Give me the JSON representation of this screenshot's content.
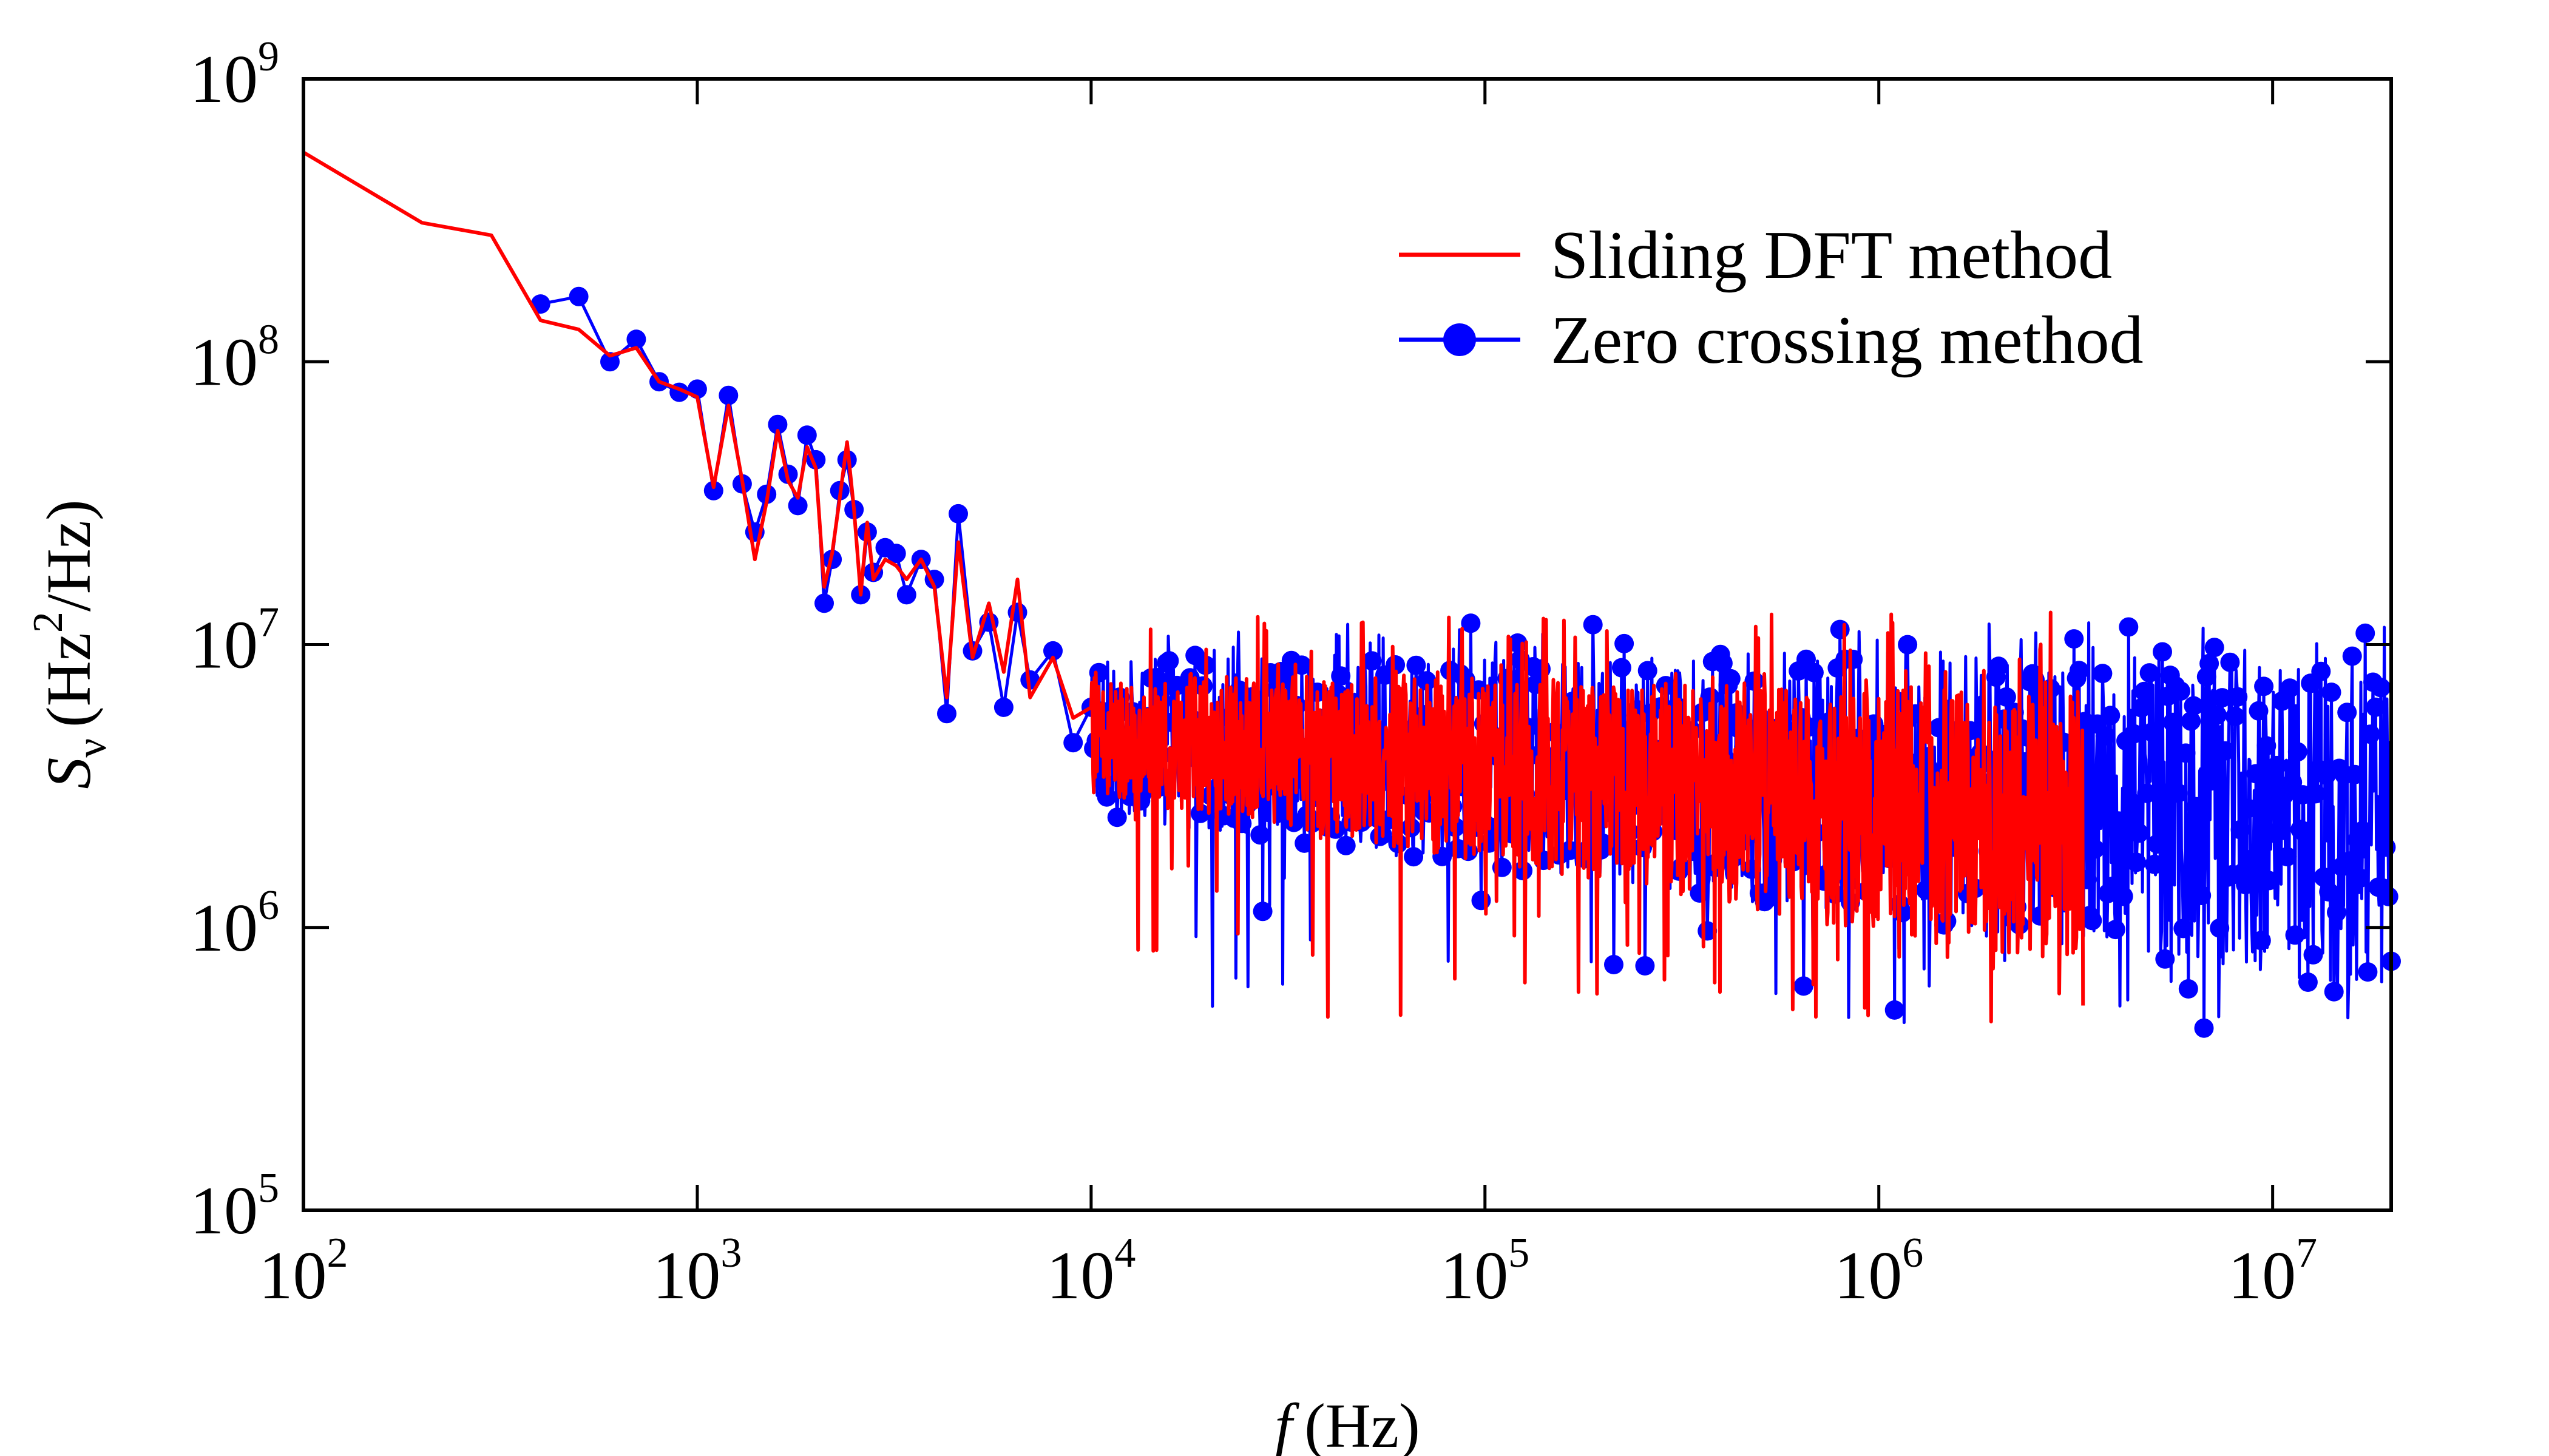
{
  "chart_data": {
    "type": "line",
    "xscale": "log",
    "yscale": "log",
    "xlim": [
      100,
      20000000
    ],
    "ylim": [
      100000,
      1000000000
    ],
    "xticks": [
      {
        "base": "10",
        "exp": "2",
        "value": 100
      },
      {
        "base": "10",
        "exp": "3",
        "value": 1000
      },
      {
        "base": "10",
        "exp": "4",
        "value": 10000
      },
      {
        "base": "10",
        "exp": "5",
        "value": 100000
      },
      {
        "base": "10",
        "exp": "6",
        "value": 1000000
      },
      {
        "base": "10",
        "exp": "7",
        "value": 10000000
      }
    ],
    "yticks": [
      {
        "base": "10",
        "exp": "5",
        "value": 100000
      },
      {
        "base": "10",
        "exp": "6",
        "value": 1000000
      },
      {
        "base": "10",
        "exp": "7",
        "value": 10000000
      },
      {
        "base": "10",
        "exp": "8",
        "value": 100000000
      },
      {
        "base": "10",
        "exp": "9",
        "value": 1000000000
      }
    ],
    "xlabel": {
      "var": "f",
      "unit": "(Hz)"
    },
    "ylabel": {
      "var": "S",
      "sub": "ν",
      "unit_open": "(Hz",
      "unit_sup": "2",
      "unit_close": "/Hz)"
    },
    "legend": {
      "position": "top-right",
      "entries": [
        {
          "label": "Sliding DFT method",
          "series": 0
        },
        {
          "label": "Zero crossing method",
          "series": 1
        }
      ]
    },
    "series": [
      {
        "name": "Sliding DFT method",
        "color": "#ff0000",
        "marker": "none",
        "points": [
          [
            100,
            550000000
          ],
          [
            200,
            310000000
          ],
          [
            300,
            280000000
          ],
          [
            400,
            140000000
          ],
          [
            500,
            130000000
          ],
          [
            600,
            105000000
          ],
          [
            700,
            112000000
          ],
          [
            800,
            85000000
          ],
          [
            900,
            80000000
          ],
          [
            1000,
            75000000
          ],
          [
            1100,
            36000000
          ],
          [
            1200,
            70000000
          ],
          [
            1300,
            38000000
          ],
          [
            1400,
            20000000
          ],
          [
            1500,
            32000000
          ],
          [
            1600,
            57000000
          ],
          [
            1700,
            38000000
          ],
          [
            1800,
            33000000
          ],
          [
            1900,
            50000000
          ],
          [
            2000,
            42000000
          ],
          [
            2100,
            16000000
          ],
          [
            2200,
            21000000
          ],
          [
            2300,
            33000000
          ],
          [
            2400,
            52000000
          ],
          [
            2500,
            30000000
          ],
          [
            2600,
            15000000
          ],
          [
            2700,
            27000000
          ],
          [
            2800,
            17000000
          ],
          [
            3000,
            20000000
          ],
          [
            3200,
            19000000
          ],
          [
            3400,
            17000000
          ],
          [
            3700,
            20000000
          ],
          [
            4000,
            16000000
          ],
          [
            4300,
            6500000
          ],
          [
            4600,
            23000000
          ],
          [
            5000,
            9000000
          ],
          [
            5500,
            14000000
          ],
          [
            6000,
            8000000
          ],
          [
            6500,
            17000000
          ],
          [
            7000,
            6500000
          ],
          [
            8000,
            9000000
          ],
          [
            9000,
            5500000
          ],
          [
            10000,
            6000000
          ]
        ],
        "band": {
          "x_start": 10000,
          "x_end": 3300000,
          "upper_start": 8000000,
          "upper_end": 7000000,
          "lower_start": 3000000,
          "lower_end": 700000,
          "spike_top": 13000000,
          "spike_bottom": 450000
        }
      },
      {
        "name": "Zero crossing method",
        "color": "#0000ff",
        "marker": "circle",
        "points": [
          [
            400,
            160000000
          ],
          [
            500,
            170000000
          ],
          [
            600,
            100000000
          ],
          [
            700,
            120000000
          ],
          [
            800,
            85000000
          ],
          [
            900,
            78000000
          ],
          [
            1000,
            80000000
          ],
          [
            1100,
            35000000
          ],
          [
            1200,
            76000000
          ],
          [
            1300,
            37000000
          ],
          [
            1400,
            25000000
          ],
          [
            1500,
            34000000
          ],
          [
            1600,
            60000000
          ],
          [
            1700,
            40000000
          ],
          [
            1800,
            31000000
          ],
          [
            1900,
            55000000
          ],
          [
            2000,
            45000000
          ],
          [
            2100,
            14000000
          ],
          [
            2200,
            20000000
          ],
          [
            2300,
            35000000
          ],
          [
            2400,
            45000000
          ],
          [
            2500,
            30000000
          ],
          [
            2600,
            15000000
          ],
          [
            2700,
            25000000
          ],
          [
            2800,
            18000000
          ],
          [
            3000,
            22000000
          ],
          [
            3200,
            21000000
          ],
          [
            3400,
            15000000
          ],
          [
            3700,
            20000000
          ],
          [
            4000,
            17000000
          ],
          [
            4300,
            5700000
          ],
          [
            4600,
            29000000
          ],
          [
            5000,
            9500000
          ],
          [
            5500,
            12000000
          ],
          [
            6000,
            6000000
          ],
          [
            6500,
            13000000
          ],
          [
            7000,
            7500000
          ],
          [
            8000,
            9500000
          ],
          [
            9000,
            4500000
          ],
          [
            10000,
            6000000
          ]
        ],
        "band": {
          "x_start": 10000,
          "x_end": 20000000,
          "upper_start": 9000000,
          "upper_end": 9000000,
          "lower_start": 2500000,
          "lower_end": 600000,
          "spike_top": 12000000,
          "spike_bottom": 430000
        }
      }
    ]
  }
}
